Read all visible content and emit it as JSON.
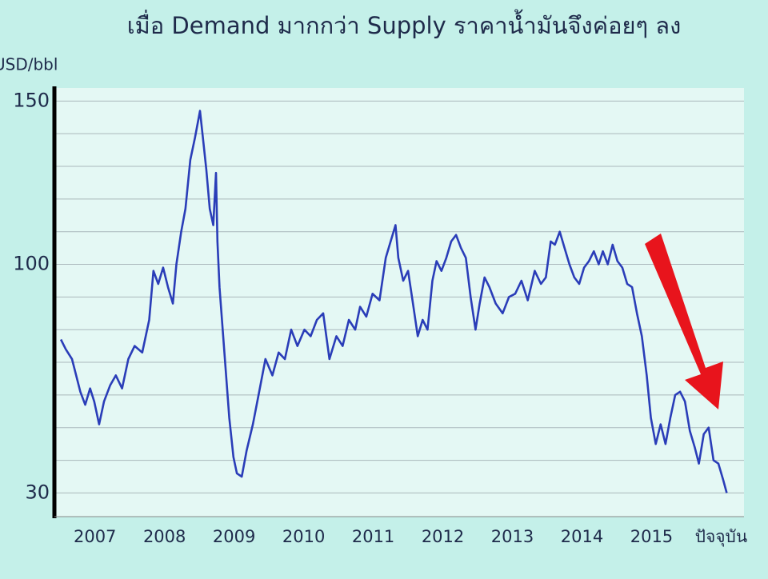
{
  "chart_data": {
    "type": "line",
    "title": "เมื่อ Demand มากกว่า Supply ราคาน้ำมันจึงค่อยๆ ลง",
    "y_label": "USD/bbl",
    "x": [
      2007.01,
      2007.08,
      2007.17,
      2007.29,
      2007.36,
      2007.43,
      2007.49,
      2007.56,
      2007.63,
      2007.72,
      2007.8,
      2007.89,
      2007.98,
      2008.07,
      2008.18,
      2008.28,
      2008.34,
      2008.41,
      2008.48,
      2008.55,
      2008.62,
      2008.67,
      2008.74,
      2008.8,
      2008.87,
      2008.94,
      2009.01,
      2009.06,
      2009.1,
      2009.15,
      2009.2,
      2009.24,
      2009.26,
      2009.29,
      2009.36,
      2009.43,
      2009.49,
      2009.54,
      2009.61,
      2009.68,
      2009.77,
      2009.86,
      2009.95,
      2010.05,
      2010.14,
      2010.23,
      2010.32,
      2010.41,
      2010.51,
      2010.6,
      2010.69,
      2010.78,
      2010.87,
      2010.97,
      2011.06,
      2011.15,
      2011.24,
      2011.31,
      2011.4,
      2011.49,
      2011.59,
      2011.68,
      2011.75,
      2011.82,
      2011.86,
      2011.93,
      2012.0,
      2012.07,
      2012.14,
      2012.21,
      2012.28,
      2012.35,
      2012.41,
      2012.48,
      2012.55,
      2012.62,
      2012.69,
      2012.76,
      2012.83,
      2012.9,
      2012.97,
      2013.03,
      2013.1,
      2013.17,
      2013.26,
      2013.36,
      2013.45,
      2013.54,
      2013.63,
      2013.72,
      2013.82,
      2013.91,
      2013.98,
      2014.05,
      2014.11,
      2014.18,
      2014.25,
      2014.32,
      2014.39,
      2014.46,
      2014.53,
      2014.6,
      2014.67,
      2014.74,
      2014.8,
      2014.87,
      2014.94,
      2015.01,
      2015.08,
      2015.15,
      2015.22,
      2015.29,
      2015.36,
      2015.43,
      2015.49,
      2015.56,
      2015.63,
      2015.7,
      2015.77,
      2015.84,
      2015.91,
      2015.98,
      2016.05,
      2016.12,
      2016.18,
      2016.25,
      2016.32,
      2016.39,
      2016.46,
      2016.53,
      2016.58
    ],
    "series": [
      {
        "color": "#2a3db8",
        "values": [
          77,
          74,
          71,
          61,
          57,
          62,
          58,
          51,
          58,
          63,
          66,
          62,
          71,
          75,
          73,
          83,
          98,
          94,
          99,
          93,
          88,
          100,
          110,
          117,
          132,
          139,
          147,
          137,
          129,
          117,
          112,
          128,
          107,
          93,
          73,
          53,
          41,
          36,
          35,
          43,
          51,
          61,
          71,
          66,
          73,
          71,
          80,
          75,
          80,
          78,
          83,
          85,
          71,
          78,
          75,
          83,
          80,
          87,
          84,
          91,
          89,
          102,
          107,
          112,
          102,
          95,
          98,
          88,
          78,
          83,
          80,
          95,
          101,
          98,
          102,
          107,
          109,
          105,
          102,
          90,
          80,
          88,
          96,
          93,
          88,
          85,
          90,
          91,
          95,
          89,
          98,
          94,
          96,
          107,
          106,
          110,
          105,
          100,
          96,
          94,
          99,
          101,
          104,
          100,
          104,
          100,
          106,
          101,
          99,
          94,
          93,
          85,
          78,
          66,
          53,
          45,
          51,
          45,
          53,
          60,
          61,
          58,
          49,
          44,
          39,
          48,
          50,
          40,
          39,
          34,
          30
        ]
      }
    ],
    "xlim": [
      2006.94,
      2016.84
    ],
    "xticks": [
      {
        "value": 2007.5,
        "label": "2007"
      },
      {
        "value": 2008.5,
        "label": "2008"
      },
      {
        "value": 2009.5,
        "label": "2009"
      },
      {
        "value": 2010.5,
        "label": "2010"
      },
      {
        "value": 2011.5,
        "label": "2011"
      },
      {
        "value": 2012.5,
        "label": "2012"
      },
      {
        "value": 2013.5,
        "label": "2013"
      },
      {
        "value": 2014.5,
        "label": "2014"
      },
      {
        "value": 2015.5,
        "label": "2015"
      },
      {
        "value": 2016.5,
        "label": "ปัจจุบัน"
      }
    ],
    "ylim": [
      23,
      154
    ],
    "yticks": [
      30,
      100,
      150
    ],
    "grid_values": [
      30,
      40,
      50,
      60,
      70,
      80,
      90,
      100,
      110,
      120,
      130,
      140,
      150
    ],
    "grid": true
  }
}
